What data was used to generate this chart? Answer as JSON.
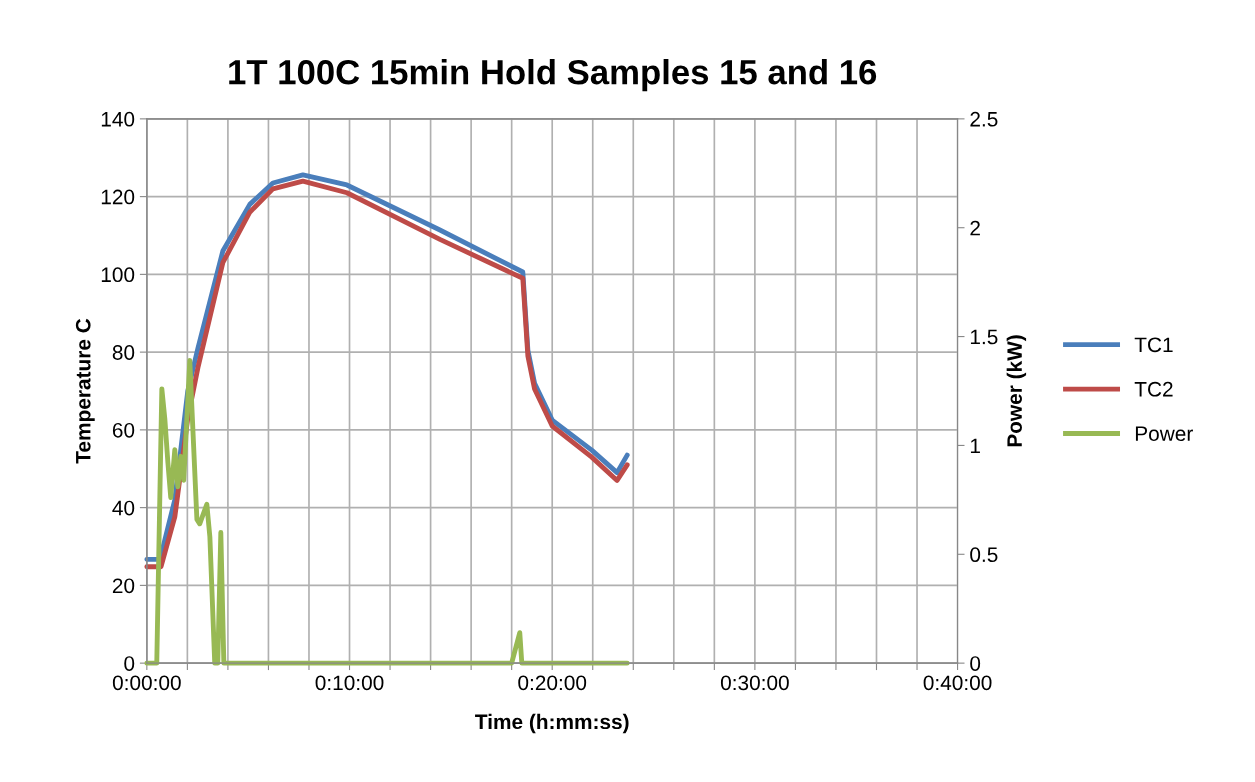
{
  "chart_data": {
    "type": "line",
    "title": "1T 100C 15min Hold Samples 15 and 16",
    "xlabel": "Time (h:mm:ss)",
    "ylabel": "Temperature C",
    "y2label": "Power (kW)",
    "xlim": [
      0,
      40
    ],
    "xticks": [
      {
        "value": 0,
        "label": "0:00:00"
      },
      {
        "value": 2,
        "label": null
      },
      {
        "value": 4,
        "label": null
      },
      {
        "value": 6,
        "label": null
      },
      {
        "value": 8,
        "label": null
      },
      {
        "value": 10,
        "label": "0:10:00"
      },
      {
        "value": 12,
        "label": null
      },
      {
        "value": 14,
        "label": null
      },
      {
        "value": 16,
        "label": null
      },
      {
        "value": 18,
        "label": null
      },
      {
        "value": 20,
        "label": "0:20:00"
      },
      {
        "value": 22,
        "label": null
      },
      {
        "value": 24,
        "label": null
      },
      {
        "value": 26,
        "label": null
      },
      {
        "value": 28,
        "label": null
      },
      {
        "value": 30,
        "label": "0:30:00"
      },
      {
        "value": 32,
        "label": null
      },
      {
        "value": 34,
        "label": null
      },
      {
        "value": 36,
        "label": null
      },
      {
        "value": 38,
        "label": null
      },
      {
        "value": 40,
        "label": "0:40:00"
      }
    ],
    "ylim": [
      0,
      140
    ],
    "yticks": [
      0,
      20,
      40,
      60,
      80,
      100,
      120,
      140
    ],
    "y2lim": [
      0,
      2.5
    ],
    "y2ticks": [
      0,
      0.5,
      1,
      1.5,
      2,
      2.5
    ],
    "grid": true,
    "legend": "right",
    "line_style": "solid",
    "marker": "none",
    "series": [
      {
        "name": "TC1",
        "color": "#4a7ebb",
        "x": [
          0,
          0.65,
          1.38,
          2.02,
          2.52,
          3.75,
          5.08,
          6.22,
          7.7,
          9.87,
          14.46,
          18.55,
          18.8,
          19.13,
          20,
          21.95,
          23.2,
          23.7
        ],
        "values": [
          26.7,
          26.7,
          42,
          70,
          81,
          106,
          118,
          123.5,
          125.6,
          123,
          111.4,
          100.6,
          80.5,
          72,
          62.5,
          54.8,
          49,
          53.5
        ]
      },
      {
        "name": "TC2",
        "color": "#be4b48",
        "x": [
          0,
          0.7,
          1.38,
          2.02,
          2.52,
          3.75,
          5.08,
          6.22,
          7.7,
          9.87,
          14.46,
          18.55,
          18.8,
          19.13,
          20,
          21.95,
          23.2,
          23.7
        ],
        "values": [
          24.8,
          24.8,
          37.6,
          63,
          76,
          103,
          116,
          122,
          124,
          121,
          109,
          99,
          79,
          70.5,
          61,
          53,
          47,
          51
        ]
      },
      {
        "name": "Power",
        "color": "#98b954",
        "axis": "y2",
        "x": [
          0,
          0.49,
          0.74,
          0.89,
          1.04,
          1.18,
          1.38,
          1.53,
          1.68,
          1.82,
          2.12,
          2.47,
          2.61,
          2.96,
          3.11,
          3.35,
          3.5,
          3.65,
          3.8,
          18.0,
          18.4,
          18.5,
          23.7
        ],
        "values": [
          0,
          0,
          1.26,
          1.12,
          0.92,
          0.76,
          0.98,
          0.81,
          0.95,
          0.84,
          1.39,
          0.66,
          0.64,
          0.73,
          0.58,
          0,
          0,
          0.6,
          0,
          0,
          0.14,
          0,
          0
        ]
      }
    ]
  }
}
